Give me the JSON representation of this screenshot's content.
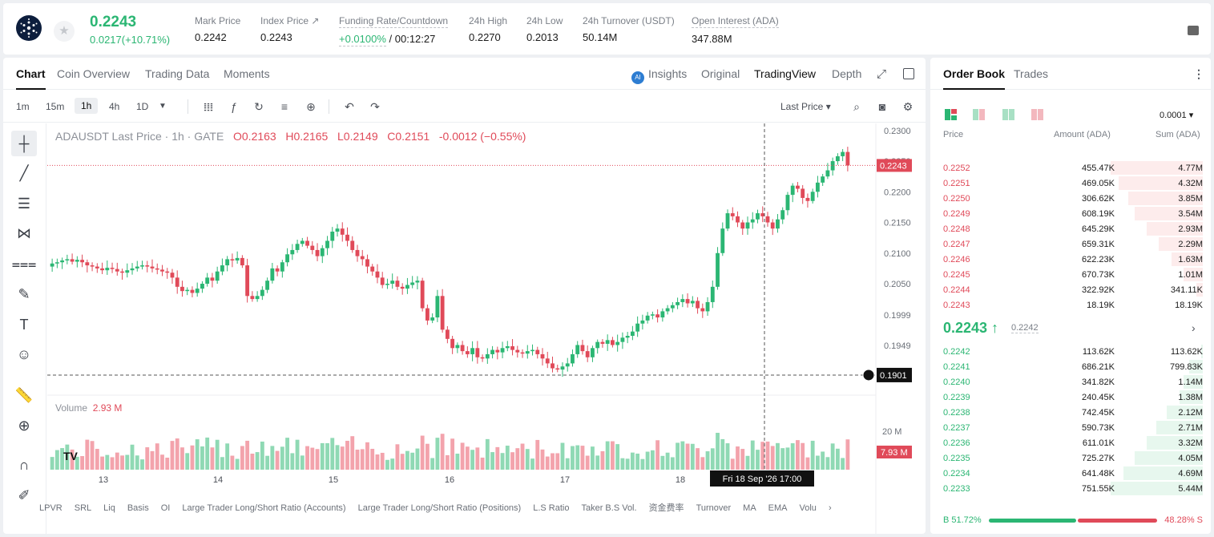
{
  "ticker": {
    "last_price": "0.2243",
    "change": "0.0217(+10.71%)",
    "stats": [
      {
        "label": "Mark Price",
        "value": "0.2242"
      },
      {
        "label": "Index Price ↗",
        "value": "0.2243"
      },
      {
        "label": "Funding Rate/Countdown",
        "value_green": "+0.0100%",
        "value": " / 00:12:27"
      },
      {
        "label": "24h High",
        "value": "0.2270"
      },
      {
        "label": "24h Low",
        "value": "0.2013"
      },
      {
        "label": "24h Turnover (USDT)",
        "value": "50.14M"
      },
      {
        "label": "Open Interest (ADA)",
        "value": "347.88M"
      }
    ]
  },
  "chart_tabs": [
    "Chart",
    "Coin Overview",
    "Trading Data",
    "Moments"
  ],
  "view_tabs": {
    "insights": "Insights",
    "original": "Original",
    "tradingview": "TradingView",
    "depth": "Depth"
  },
  "intervals": [
    "1m",
    "15m",
    "1h",
    "4h",
    "1D"
  ],
  "price_source": "Last Price ▾",
  "ohlc": {
    "symbol": "ADAUSDT Last Price · 1h · GATE",
    "o": "O0.2163",
    "h": "H0.2165",
    "l": "L0.2149",
    "c": "C0.2151",
    "chg": "-0.0012 (−0.55%)"
  },
  "volume_label": {
    "name": "Volume",
    "value": "2.93 M"
  },
  "crosshair_time": "Fri 18 Sep '26   17:00",
  "indicators": [
    "LPVR",
    "SRL",
    "Liq",
    "Basis",
    "OI",
    "Large Trader Long/Short Ratio (Accounts)",
    "Large Trader Long/Short Ratio (Positions)",
    "L.S Ratio",
    "Taker B.S Vol.",
    "资金费率",
    "Turnover",
    "MA",
    "EMA",
    "Volu"
  ],
  "chart_data": {
    "type": "candlestick",
    "x_ticks": [
      "13",
      "14",
      "15",
      "16",
      "17",
      "18"
    ],
    "y_ticks": [
      "0.2300",
      "0.2250",
      "0.2200",
      "0.2150",
      "0.2100",
      "0.2050",
      "0.1999",
      "0.1949"
    ],
    "last_price_label": "0.2243",
    "crosshair_price_label": "0.1901",
    "volume_ticks": [
      "20 M"
    ],
    "volume_label_current": "7.93 M",
    "ylim": [
      0.188,
      0.2305
    ],
    "candles_hourly_close": [
      0.2083,
      0.2085,
      0.2088,
      0.209,
      0.2086,
      0.2089,
      0.2085,
      0.208,
      0.2078,
      0.2075,
      0.2072,
      0.2076,
      0.2074,
      0.207,
      0.2068,
      0.2072,
      0.2075,
      0.2078,
      0.208,
      0.2078,
      0.2075,
      0.2073,
      0.207,
      0.2068,
      0.206,
      0.2045,
      0.2038,
      0.204,
      0.2035,
      0.2042,
      0.205,
      0.206,
      0.2055,
      0.207,
      0.208,
      0.209,
      0.2088,
      0.2092,
      0.208,
      0.203,
      0.2025,
      0.203,
      0.204,
      0.2055,
      0.2075,
      0.207,
      0.2085,
      0.2098,
      0.2105,
      0.2115,
      0.212,
      0.2112,
      0.2105,
      0.2095,
      0.2108,
      0.212,
      0.2135,
      0.214,
      0.213,
      0.212,
      0.2105,
      0.2095,
      0.209,
      0.2078,
      0.207,
      0.206,
      0.2048,
      0.205,
      0.2055,
      0.2045,
      0.2042,
      0.2048,
      0.2052,
      0.2055,
      0.201,
      0.199,
      0.1995,
      0.203,
      0.1975,
      0.196,
      0.1945,
      0.195,
      0.194,
      0.1935,
      0.1945,
      0.193,
      0.1928,
      0.1935,
      0.1942,
      0.1938,
      0.1945,
      0.1948,
      0.1942,
      0.1938,
      0.1936,
      0.194,
      0.1942,
      0.1935,
      0.1928,
      0.192,
      0.1912,
      0.191,
      0.1915,
      0.192,
      0.1935,
      0.195,
      0.194,
      0.193,
      0.1945,
      0.1955,
      0.1952,
      0.1958,
      0.195,
      0.1955,
      0.1962,
      0.1965,
      0.1972,
      0.1985,
      0.199,
      0.1998,
      0.2,
      0.1995,
      0.2005,
      0.201,
      0.2015,
      0.202,
      0.2025,
      0.2018,
      0.2022,
      0.201,
      0.2005,
      0.202,
      0.2045,
      0.21,
      0.214,
      0.2165,
      0.216,
      0.215,
      0.214,
      0.215,
      0.2155,
      0.2165,
      0.216,
      0.215,
      0.214,
      0.2155,
      0.217,
      0.2195,
      0.221,
      0.2205,
      0.219,
      0.2185,
      0.22,
      0.2215,
      0.2225,
      0.2235,
      0.225,
      0.2258,
      0.2265,
      0.2243
    ],
    "volume_max": 26
  },
  "order_book": {
    "tabs": [
      "Order Book",
      "Trades"
    ],
    "precision": "0.0001 ▾",
    "headers": {
      "price": "Price",
      "amount": "Amount (ADA)",
      "sum": "Sum (ADA)"
    },
    "asks": [
      {
        "p": "0.2252",
        "a": "455.47K",
        "s": "4.77M",
        "f": 1.0
      },
      {
        "p": "0.2251",
        "a": "469.05K",
        "s": "4.32M",
        "f": 0.91
      },
      {
        "p": "0.2250",
        "a": "306.62K",
        "s": "3.85M",
        "f": 0.81
      },
      {
        "p": "0.2249",
        "a": "608.19K",
        "s": "3.54M",
        "f": 0.74
      },
      {
        "p": "0.2248",
        "a": "645.29K",
        "s": "2.93M",
        "f": 0.61
      },
      {
        "p": "0.2247",
        "a": "659.31K",
        "s": "2.29M",
        "f": 0.48
      },
      {
        "p": "0.2246",
        "a": "622.23K",
        "s": "1.63M",
        "f": 0.34
      },
      {
        "p": "0.2245",
        "a": "670.73K",
        "s": "1.01M",
        "f": 0.21
      },
      {
        "p": "0.2244",
        "a": "322.92K",
        "s": "341.11K",
        "f": 0.07
      },
      {
        "p": "0.2243",
        "a": "18.19K",
        "s": "18.19K",
        "f": 0.0
      }
    ],
    "mid_price": "0.2243 ↑",
    "mark_price": "0.2242",
    "bids": [
      {
        "p": "0.2242",
        "a": "113.62K",
        "s": "113.62K",
        "f": 0.02
      },
      {
        "p": "0.2241",
        "a": "686.21K",
        "s": "799.83K",
        "f": 0.15
      },
      {
        "p": "0.2240",
        "a": "341.82K",
        "s": "1.14M",
        "f": 0.21
      },
      {
        "p": "0.2239",
        "a": "240.45K",
        "s": "1.38M",
        "f": 0.25
      },
      {
        "p": "0.2238",
        "a": "742.45K",
        "s": "2.12M",
        "f": 0.39
      },
      {
        "p": "0.2237",
        "a": "590.73K",
        "s": "2.71M",
        "f": 0.5
      },
      {
        "p": "0.2236",
        "a": "611.01K",
        "s": "3.32M",
        "f": 0.61
      },
      {
        "p": "0.2235",
        "a": "725.27K",
        "s": "4.05M",
        "f": 0.74
      },
      {
        "p": "0.2234",
        "a": "641.48K",
        "s": "4.69M",
        "f": 0.86
      },
      {
        "p": "0.2233",
        "a": "751.55K",
        "s": "5.44M",
        "f": 1.0
      }
    ],
    "ratio": {
      "buy": "B 51.72%",
      "sell": "48.28% S",
      "buy_frac": 0.5172
    }
  },
  "colors": {
    "up": "#2bb673",
    "down": "#e04a59"
  }
}
